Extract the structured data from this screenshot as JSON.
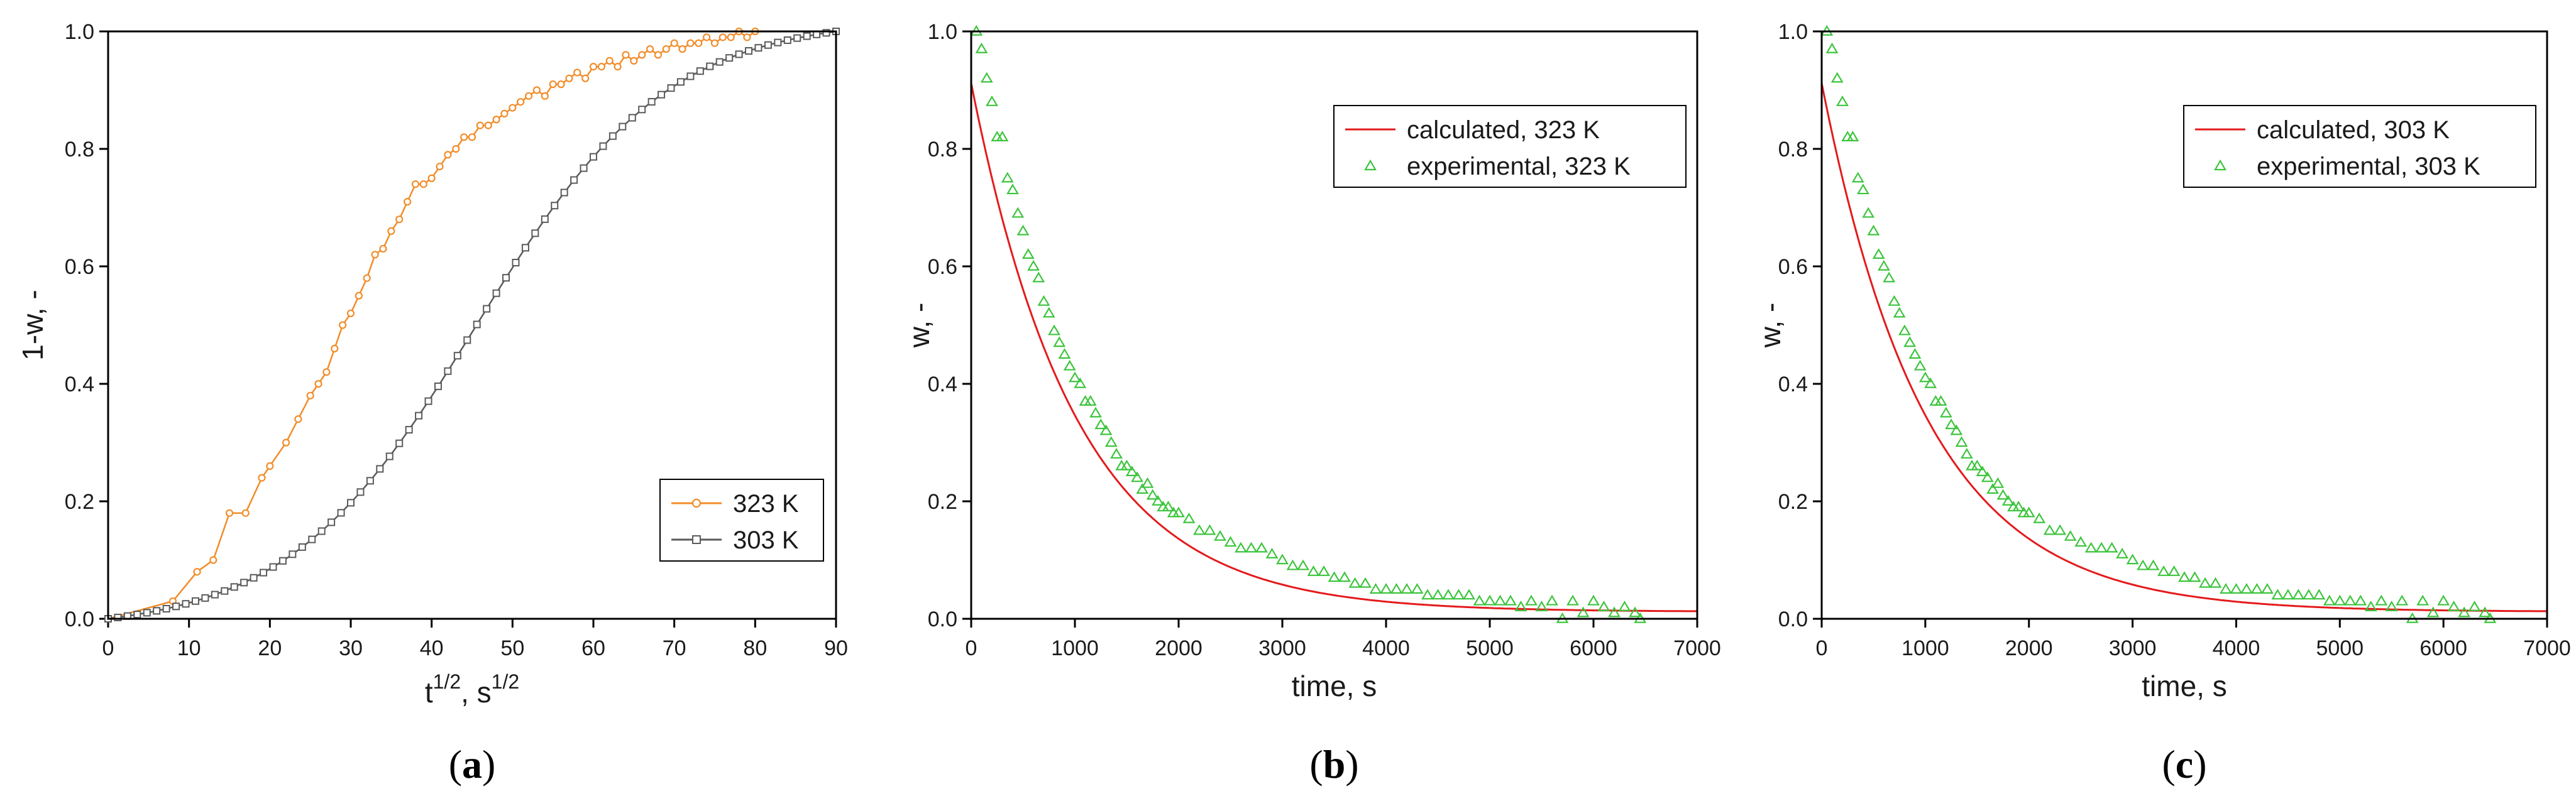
{
  "colors": {
    "orange": "#F28C28",
    "gray": "#5a5a5a",
    "red": "#E41A1C",
    "green": "#3CC43C"
  },
  "chart_data": [
    {
      "type": "line",
      "panel_label": "a",
      "xlabel": "t",
      "xlabel_sup": "1/2",
      "xlabel_mid": ", s",
      "xlabel_sup2": "1/2",
      "ylabel": "1-w, -",
      "xlim": [
        0,
        90
      ],
      "ylim": [
        0,
        1.0
      ],
      "xticks": [
        "0",
        "10",
        "20",
        "30",
        "40",
        "50",
        "60",
        "70",
        "80",
        "90"
      ],
      "yticks": [
        "0.0",
        "0.2",
        "0.4",
        "0.6",
        "0.8",
        "1.0"
      ],
      "legend_position": "bottom-right",
      "series": [
        {
          "name": "323 K",
          "marker": "circle",
          "color": "#F28C28",
          "x": [
            0,
            8,
            11,
            13,
            15,
            17,
            19,
            20,
            22,
            23.5,
            25,
            26,
            27,
            28,
            29,
            30,
            31,
            32,
            33,
            34,
            35,
            36,
            37,
            38,
            39,
            40,
            41,
            42,
            43,
            44,
            45,
            46,
            47,
            48,
            49,
            50,
            51,
            52,
            53,
            54,
            55,
            56,
            57,
            58,
            59,
            60,
            61,
            62,
            63,
            64,
            65,
            66,
            67,
            68,
            69,
            70,
            71,
            72,
            73,
            74,
            75,
            76,
            77,
            78,
            79,
            80
          ],
          "y": [
            0,
            0.03,
            0.08,
            0.1,
            0.18,
            0.18,
            0.24,
            0.26,
            0.3,
            0.34,
            0.38,
            0.4,
            0.42,
            0.46,
            0.5,
            0.52,
            0.55,
            0.58,
            0.62,
            0.63,
            0.66,
            0.68,
            0.71,
            0.74,
            0.74,
            0.75,
            0.77,
            0.79,
            0.8,
            0.82,
            0.82,
            0.84,
            0.84,
            0.85,
            0.86,
            0.87,
            0.88,
            0.89,
            0.9,
            0.89,
            0.91,
            0.91,
            0.92,
            0.93,
            0.92,
            0.94,
            0.94,
            0.95,
            0.94,
            0.96,
            0.95,
            0.96,
            0.97,
            0.96,
            0.97,
            0.98,
            0.97,
            0.98,
            0.98,
            0.99,
            0.98,
            0.99,
            0.99,
            1.0,
            0.99,
            1.0
          ]
        },
        {
          "name": "303 K",
          "marker": "square",
          "color": "#5a5a5a",
          "model": {
            "kind": "sigmoid_fit",
            "k": 0.0852,
            "x0": 45.6
          },
          "x_start": 0,
          "x_end": 90,
          "x_step": 1.2
        }
      ]
    },
    {
      "type": "line",
      "panel_label": "b",
      "xlabel": "time, s",
      "ylabel": "w, -",
      "xlim": [
        0,
        7000
      ],
      "ylim": [
        0,
        1.0
      ],
      "xticks": [
        "0",
        "1000",
        "2000",
        "3000",
        "4000",
        "5000",
        "6000",
        "7000"
      ],
      "yticks": [
        "0.0",
        "0.2",
        "0.4",
        "0.6",
        "0.8",
        "1.0"
      ],
      "legend_position": "top-right",
      "series": [
        {
          "name": "calculated, 323 K",
          "style": "line",
          "color": "#E41A1C",
          "model": {
            "kind": "exp_decay",
            "a": 0.9,
            "tau": 1010,
            "c": 0.012
          },
          "x_start": 0,
          "x_end": 7000
        },
        {
          "name": "experimental, 323 K",
          "style": "triangle",
          "color": "#3CC43C",
          "x": [
            50,
            100,
            150,
            200,
            250,
            300,
            350,
            400,
            450,
            500,
            550,
            600,
            650,
            700,
            750,
            800,
            850,
            900,
            950,
            1000,
            1050,
            1100,
            1150,
            1200,
            1250,
            1300,
            1350,
            1400,
            1450,
            1500,
            1550,
            1600,
            1650,
            1700,
            1750,
            1800,
            1850,
            1900,
            1950,
            2000,
            2100,
            2200,
            2300,
            2400,
            2500,
            2600,
            2700,
            2800,
            2900,
            3000,
            3100,
            3200,
            3300,
            3400,
            3500,
            3600,
            3700,
            3800,
            3900,
            4000,
            4100,
            4200,
            4300,
            4400,
            4500,
            4600,
            4700,
            4800,
            4900,
            5000,
            5100,
            5200,
            5300,
            5400,
            5500,
            5600,
            5700,
            5800,
            5900,
            6000,
            6100,
            6200,
            6300,
            6400,
            6450
          ],
          "y": [
            1.0,
            0.97,
            0.92,
            0.88,
            0.82,
            0.82,
            0.75,
            0.73,
            0.69,
            0.66,
            0.62,
            0.6,
            0.58,
            0.54,
            0.52,
            0.49,
            0.47,
            0.45,
            0.43,
            0.41,
            0.4,
            0.37,
            0.37,
            0.35,
            0.33,
            0.32,
            0.3,
            0.28,
            0.26,
            0.26,
            0.25,
            0.24,
            0.22,
            0.23,
            0.21,
            0.2,
            0.19,
            0.19,
            0.18,
            0.18,
            0.17,
            0.15,
            0.15,
            0.14,
            0.13,
            0.12,
            0.12,
            0.12,
            0.11,
            0.1,
            0.09,
            0.09,
            0.08,
            0.08,
            0.07,
            0.07,
            0.06,
            0.06,
            0.05,
            0.05,
            0.05,
            0.05,
            0.05,
            0.04,
            0.04,
            0.04,
            0.04,
            0.04,
            0.03,
            0.03,
            0.03,
            0.03,
            0.02,
            0.03,
            0.02,
            0.03,
            0.0,
            0.03,
            0.01,
            0.03,
            0.02,
            0.01,
            0.02,
            0.01,
            0.0
          ]
        }
      ]
    },
    {
      "type": "line",
      "panel_label": "c",
      "xlabel": "time, s",
      "ylabel": "w, -",
      "xlim": [
        0,
        7000
      ],
      "ylim": [
        0,
        1.0
      ],
      "xticks": [
        "0",
        "1000",
        "2000",
        "3000",
        "4000",
        "5000",
        "6000",
        "7000"
      ],
      "yticks": [
        "0.0",
        "0.2",
        "0.4",
        "0.6",
        "0.8",
        "1.0"
      ],
      "legend_position": "top-right",
      "series": [
        {
          "name": "calculated, 303 K",
          "style": "line",
          "color": "#E41A1C",
          "model": {
            "kind": "exp_decay",
            "a": 0.9,
            "tau": 1010,
            "c": 0.012
          },
          "x_start": 0,
          "x_end": 7000
        },
        {
          "name": "experimental, 303 K",
          "style": "triangle",
          "color": "#3CC43C",
          "x": [
            50,
            100,
            150,
            200,
            250,
            300,
            350,
            400,
            450,
            500,
            550,
            600,
            650,
            700,
            750,
            800,
            850,
            900,
            950,
            1000,
            1050,
            1100,
            1150,
            1200,
            1250,
            1300,
            1350,
            1400,
            1450,
            1500,
            1550,
            1600,
            1650,
            1700,
            1750,
            1800,
            1850,
            1900,
            1950,
            2000,
            2100,
            2200,
            2300,
            2400,
            2500,
            2600,
            2700,
            2800,
            2900,
            3000,
            3100,
            3200,
            3300,
            3400,
            3500,
            3600,
            3700,
            3800,
            3900,
            4000,
            4100,
            4200,
            4300,
            4400,
            4500,
            4600,
            4700,
            4800,
            4900,
            5000,
            5100,
            5200,
            5300,
            5400,
            5500,
            5600,
            5700,
            5800,
            5900,
            6000,
            6100,
            6200,
            6300,
            6400,
            6450
          ],
          "y": [
            1.0,
            0.97,
            0.92,
            0.88,
            0.82,
            0.82,
            0.75,
            0.73,
            0.69,
            0.66,
            0.62,
            0.6,
            0.58,
            0.54,
            0.52,
            0.49,
            0.47,
            0.45,
            0.43,
            0.41,
            0.4,
            0.37,
            0.37,
            0.35,
            0.33,
            0.32,
            0.3,
            0.28,
            0.26,
            0.26,
            0.25,
            0.24,
            0.22,
            0.23,
            0.21,
            0.2,
            0.19,
            0.19,
            0.18,
            0.18,
            0.17,
            0.15,
            0.15,
            0.14,
            0.13,
            0.12,
            0.12,
            0.12,
            0.11,
            0.1,
            0.09,
            0.09,
            0.08,
            0.08,
            0.07,
            0.07,
            0.06,
            0.06,
            0.05,
            0.05,
            0.05,
            0.05,
            0.05,
            0.04,
            0.04,
            0.04,
            0.04,
            0.04,
            0.03,
            0.03,
            0.03,
            0.03,
            0.02,
            0.03,
            0.02,
            0.03,
            0.0,
            0.03,
            0.01,
            0.03,
            0.02,
            0.01,
            0.02,
            0.01,
            0.0
          ]
        }
      ]
    }
  ]
}
